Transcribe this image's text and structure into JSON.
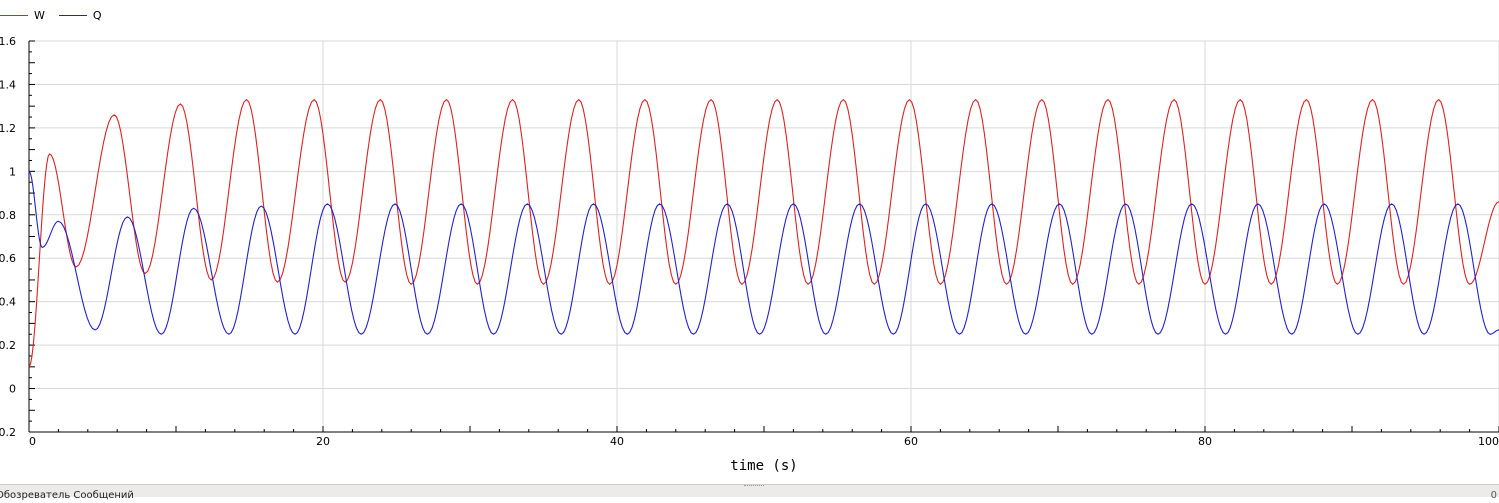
{
  "chart_data": {
    "type": "line",
    "xlabel": "time (s)",
    "ylabel": "",
    "xlim": [
      0,
      100
    ],
    "ylim": [
      -0.2,
      1.6
    ],
    "x_ticks": [
      0,
      20,
      40,
      60,
      80,
      100
    ],
    "x_tick_labels": [
      "0",
      "20",
      "40",
      "60",
      "80",
      "100"
    ],
    "y_ticks": [
      -0.2,
      0,
      0.2,
      0.4,
      0.6,
      0.8,
      1,
      1.2,
      1.4,
      1.6
    ],
    "y_tick_labels": [
      "-0.2",
      "0",
      "0.2",
      "0.4",
      "0.6",
      "0.8",
      "1",
      "1.2",
      "1.4",
      "1.6"
    ],
    "grid": true,
    "legend_position": "top-left",
    "series": [
      {
        "name": "W",
        "color": "#dd2222",
        "x": [
          0,
          1.4,
          3.2,
          5.8,
          7.9,
          10.3,
          12.4,
          14.8,
          16.9,
          19.4,
          21.5,
          23.9,
          26.0,
          28.4,
          30.5,
          32.9,
          35.0,
          37.4,
          39.5,
          41.9,
          44.0,
          46.4,
          48.5,
          50.9,
          53.0,
          55.4,
          57.5,
          59.9,
          62.0,
          64.4,
          66.5,
          68.9,
          71.0,
          73.4,
          75.5,
          77.9,
          80.0,
          82.4,
          84.5,
          86.9,
          89.0,
          91.4,
          93.5,
          95.9,
          98.0,
          100
        ],
        "y": [
          0.1,
          1.08,
          0.56,
          1.26,
          0.53,
          1.31,
          0.5,
          1.33,
          0.49,
          1.33,
          0.49,
          1.33,
          0.48,
          1.33,
          0.48,
          1.33,
          0.48,
          1.33,
          0.48,
          1.33,
          0.48,
          1.33,
          0.48,
          1.33,
          0.48,
          1.33,
          0.48,
          1.33,
          0.48,
          1.33,
          0.48,
          1.33,
          0.48,
          1.33,
          0.48,
          1.33,
          0.48,
          1.33,
          0.48,
          1.33,
          0.48,
          1.33,
          0.48,
          1.33,
          0.48,
          0.86
        ]
      },
      {
        "name": "Q",
        "color": "#2222cc",
        "x": [
          0,
          0.9,
          2.0,
          4.5,
          6.7,
          9.0,
          11.2,
          13.6,
          15.8,
          18.1,
          20.3,
          22.6,
          24.9,
          27.1,
          29.4,
          31.6,
          33.9,
          36.2,
          38.4,
          40.7,
          42.9,
          45.2,
          47.5,
          49.7,
          52.0,
          54.2,
          56.5,
          58.8,
          61.0,
          63.3,
          65.5,
          67.8,
          70.1,
          72.3,
          74.6,
          76.8,
          79.1,
          81.4,
          83.6,
          85.9,
          88.1,
          90.4,
          92.7,
          94.9,
          97.2,
          99.4,
          100
        ],
        "y": [
          1.0,
          0.65,
          0.77,
          0.27,
          0.79,
          0.25,
          0.83,
          0.25,
          0.84,
          0.25,
          0.85,
          0.25,
          0.85,
          0.25,
          0.85,
          0.25,
          0.85,
          0.25,
          0.85,
          0.25,
          0.85,
          0.25,
          0.85,
          0.25,
          0.85,
          0.25,
          0.85,
          0.25,
          0.85,
          0.25,
          0.85,
          0.25,
          0.85,
          0.25,
          0.85,
          0.25,
          0.85,
          0.25,
          0.85,
          0.25,
          0.85,
          0.25,
          0.85,
          0.25,
          0.85,
          0.25,
          0.27
        ]
      }
    ]
  },
  "statusbar": {
    "label": "Обозреватель Сообщений",
    "right_text": "0"
  }
}
